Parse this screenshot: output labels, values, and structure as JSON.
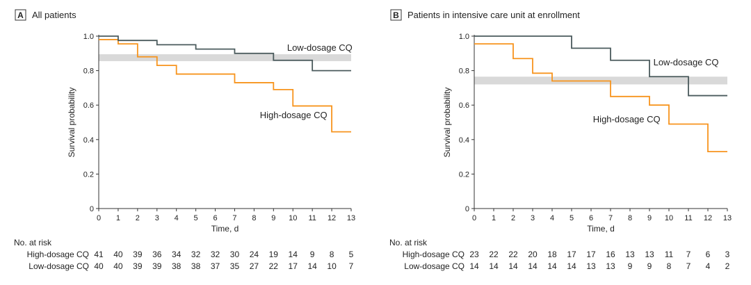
{
  "chart_data": [
    {
      "type": "line",
      "panel_letter": "A",
      "title": "All patients",
      "xlabel": "Time, d",
      "ylabel": "Survival probability",
      "xlim": [
        0,
        13
      ],
      "ylim": [
        0,
        1.0
      ],
      "x_ticks": [
        "0",
        "1",
        "2",
        "3",
        "4",
        "5",
        "6",
        "7",
        "8",
        "9",
        "10",
        "11",
        "12",
        "13"
      ],
      "y_ticks": [
        "0",
        "0.2",
        "0.4",
        "0.6",
        "0.8",
        "1.0"
      ],
      "shaded_band": [
        0.855,
        0.895
      ],
      "series": [
        {
          "name": "High-dosage CQ",
          "color": "#f7941d",
          "step": true,
          "x": [
            0,
            1,
            2,
            3,
            4,
            7,
            9,
            10,
            12,
            13
          ],
          "y": [
            0.98,
            0.955,
            0.88,
            0.83,
            0.78,
            0.73,
            0.69,
            0.595,
            0.445,
            0.445
          ],
          "label_pos": [
            8.3,
            0.525
          ]
        },
        {
          "name": "Low-dosage CQ",
          "color": "#4a5a5c",
          "step": true,
          "x": [
            0,
            1,
            3,
            5,
            7,
            9,
            11,
            13
          ],
          "y": [
            1.0,
            0.975,
            0.95,
            0.925,
            0.9,
            0.86,
            0.8,
            0.8
          ],
          "label_pos": [
            9.7,
            0.915
          ]
        }
      ],
      "at_risk": {
        "header": "No. at risk",
        "rows": [
          {
            "label": "High-dosage CQ",
            "values": [
              "41",
              "40",
              "39",
              "36",
              "34",
              "32",
              "32",
              "30",
              "24",
              "19",
              "14",
              "9",
              "8",
              "5"
            ]
          },
          {
            "label": "Low-dosage CQ",
            "values": [
              "40",
              "40",
              "39",
              "39",
              "38",
              "38",
              "37",
              "35",
              "27",
              "22",
              "17",
              "14",
              "10",
              "7"
            ]
          }
        ]
      }
    },
    {
      "type": "line",
      "panel_letter": "B",
      "title": "Patients in intensive care unit at enrollment",
      "xlabel": "Time, d",
      "ylabel": "Survival probability",
      "xlim": [
        0,
        13
      ],
      "ylim": [
        0,
        1.0
      ],
      "x_ticks": [
        "0",
        "1",
        "2",
        "3",
        "4",
        "5",
        "6",
        "7",
        "8",
        "9",
        "10",
        "11",
        "12",
        "13"
      ],
      "y_ticks": [
        "0",
        "0.2",
        "0.4",
        "0.6",
        "0.8",
        "1.0"
      ],
      "shaded_band": [
        0.72,
        0.765
      ],
      "series": [
        {
          "name": "High-dosage CQ",
          "color": "#f7941d",
          "step": true,
          "x": [
            0,
            2,
            3,
            4,
            7,
            9,
            10,
            12,
            13
          ],
          "y": [
            0.955,
            0.87,
            0.785,
            0.74,
            0.65,
            0.6,
            0.49,
            0.33,
            0.33
          ],
          "label_pos": [
            6.1,
            0.5
          ]
        },
        {
          "name": "Low-dosage CQ",
          "color": "#4a5a5c",
          "step": true,
          "x": [
            0,
            5,
            7,
            9,
            11,
            13
          ],
          "y": [
            1.0,
            0.93,
            0.86,
            0.765,
            0.655,
            0.655
          ],
          "label_pos": [
            9.2,
            0.83
          ]
        }
      ],
      "at_risk": {
        "header": "No. at risk",
        "rows": [
          {
            "label": "High-dosage CQ",
            "values": [
              "23",
              "22",
              "22",
              "20",
              "18",
              "17",
              "17",
              "16",
              "13",
              "13",
              "11",
              "7",
              "6",
              "3"
            ]
          },
          {
            "label": "Low-dosage CQ",
            "values": [
              "14",
              "14",
              "14",
              "14",
              "14",
              "14",
              "13",
              "13",
              "9",
              "9",
              "8",
              "7",
              "4",
              "2"
            ]
          }
        ]
      }
    }
  ]
}
